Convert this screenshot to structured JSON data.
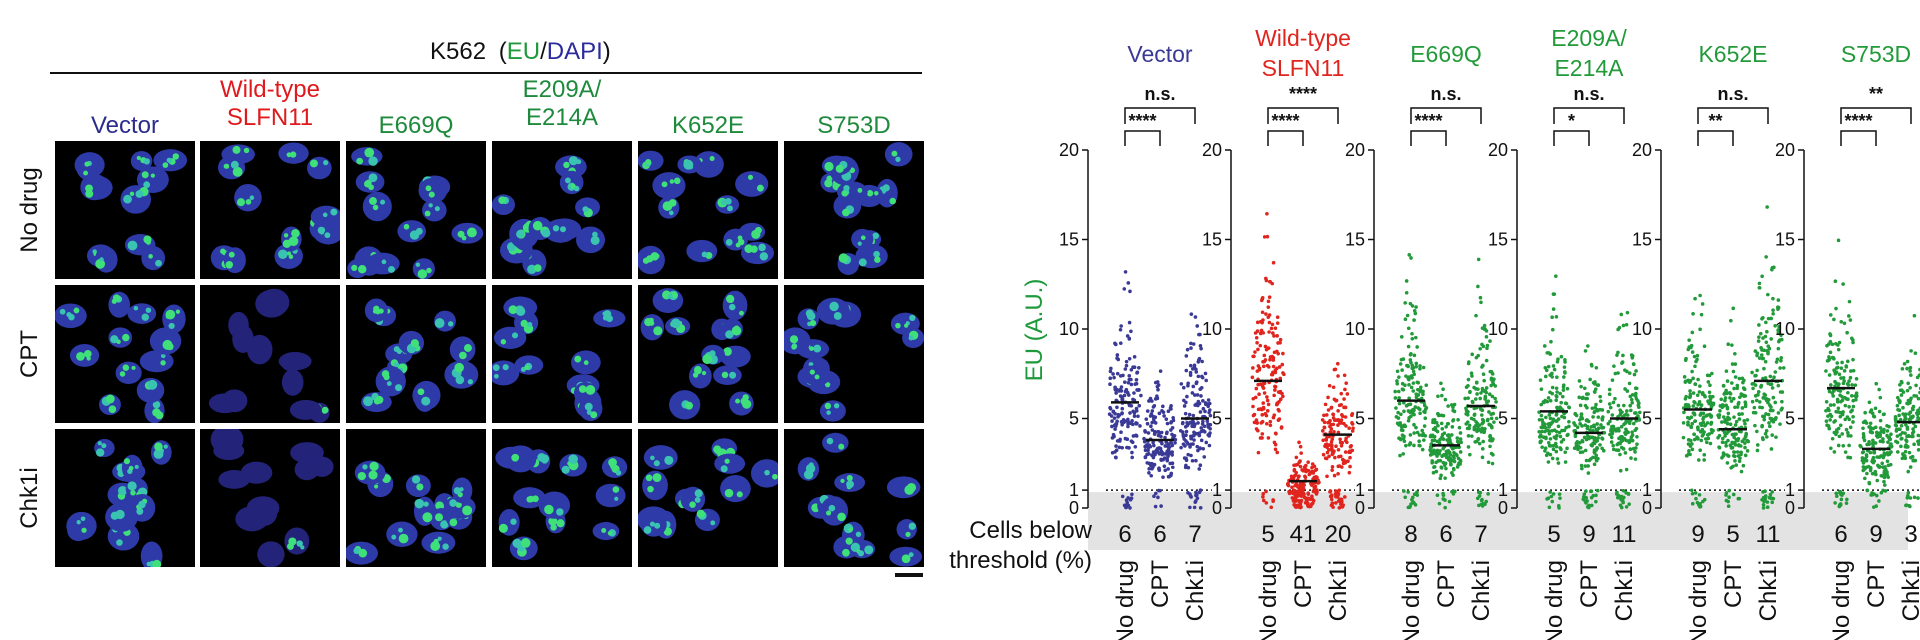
{
  "microscopy": {
    "title_prefix": "K562",
    "title_open": "(",
    "title_eu": "EU",
    "title_slash": "/",
    "title_dapi": "DAPI",
    "title_close": ")",
    "conditions": [
      {
        "label_lines": [
          "Vector"
        ],
        "color": "#2b2b8c"
      },
      {
        "label_lines": [
          "Wild-type",
          "SLFN11"
        ],
        "color": "#e0191d"
      },
      {
        "label_lines": [
          "E669Q"
        ],
        "color": "#1e8a3c"
      },
      {
        "label_lines": [
          "E209A/",
          "E214A"
        ],
        "color": "#1e8a3c"
      },
      {
        "label_lines": [
          "K652E"
        ],
        "color": "#1e8a3c"
      },
      {
        "label_lines": [
          "S753D"
        ],
        "color": "#1e8a3c"
      }
    ],
    "treatments": [
      "No drug",
      "CPT",
      "Chk1i"
    ],
    "dim_tiles": [
      [
        1,
        1
      ],
      [
        2,
        1
      ]
    ],
    "colors": {
      "eu": "#1e9a3c",
      "dapi": "#2b2b9c"
    }
  },
  "chart_data": {
    "type": "scatter",
    "ylabel": "EU (A.U.)",
    "ylabel_color": "#1e9a3c",
    "ylim": [
      0,
      20
    ],
    "yticks": [
      0,
      1,
      5,
      10,
      15,
      20
    ],
    "threshold": 1,
    "categories": [
      "No drug",
      "CPT",
      "Chk1i"
    ],
    "below_label_lines": [
      "Cells below",
      "threshold (%)"
    ],
    "shaded_band_color": "#e3e3e3",
    "groups": [
      {
        "name_lines": [
          "Vector"
        ],
        "color": "#3a3a96",
        "medians": [
          5.9,
          3.8,
          5.0
        ],
        "below_threshold": [
          "6",
          "6",
          "7"
        ],
        "sig_outer": "n.s.",
        "sig_inner": "****"
      },
      {
        "name_lines": [
          "Wild-type",
          "SLFN11"
        ],
        "color": "#e0251e",
        "medians": [
          7.1,
          1.5,
          4.1
        ],
        "below_threshold": [
          "5",
          "41",
          "20"
        ],
        "sig_outer": "****",
        "sig_inner": "****"
      },
      {
        "name_lines": [
          "E669Q"
        ],
        "color": "#229a3a",
        "medians": [
          6.0,
          3.5,
          5.7
        ],
        "below_threshold": [
          "8",
          "6",
          "7"
        ],
        "sig_outer": "n.s.",
        "sig_inner": "****"
      },
      {
        "name_lines": [
          "E209A/",
          "E214A"
        ],
        "color": "#229a3a",
        "medians": [
          5.4,
          4.2,
          5.0
        ],
        "below_threshold": [
          "5",
          "9",
          "11"
        ],
        "sig_outer": "n.s.",
        "sig_inner": "*"
      },
      {
        "name_lines": [
          "K652E"
        ],
        "color": "#229a3a",
        "medians": [
          5.5,
          4.4,
          7.1
        ],
        "below_threshold": [
          "9",
          "5",
          "11"
        ],
        "sig_outer": "n.s.",
        "sig_inner": "**"
      },
      {
        "name_lines": [
          "S753D"
        ],
        "color": "#229a3a",
        "medians": [
          6.7,
          3.3,
          4.8
        ],
        "below_threshold": [
          "6",
          "9",
          "3"
        ],
        "sig_outer": "**",
        "sig_inner": "****"
      }
    ]
  }
}
